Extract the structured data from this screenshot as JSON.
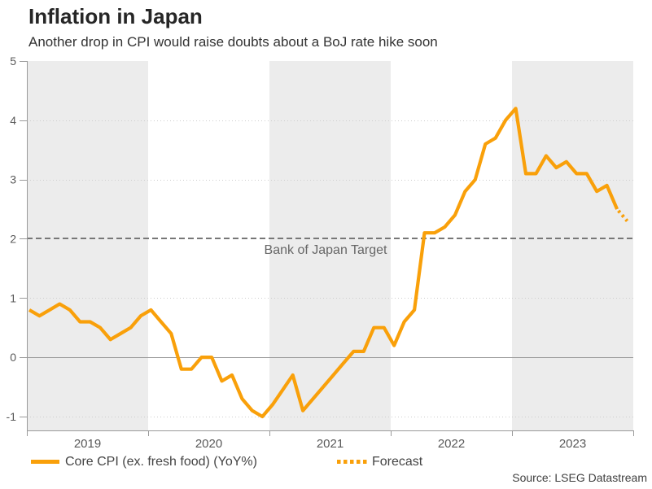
{
  "header": {
    "title": "Inflation in Japan",
    "subtitle": "Another drop in CPI would raise doubts about a BoJ rate hike soon"
  },
  "annotation": {
    "label": "Bank of Japan Target",
    "value": 2
  },
  "legend": {
    "series_label": "Core CPI (ex. fresh food) (YoY%)",
    "forecast_label": "Forecast"
  },
  "source": "Source: LSEG Datastream",
  "colors": {
    "line": "#F9A00A",
    "band": "#ECECEC",
    "grid": "#CDCDCD",
    "axis": "#9A9A9A",
    "target": "#777777",
    "tick_text": "#595959"
  },
  "chart_data": {
    "type": "line",
    "title": "Inflation in Japan",
    "subtitle": "Another drop in CPI would raise doubts about a BoJ rate hike soon",
    "frequency": "monthly",
    "x_range": [
      "2019-01",
      "2023-12"
    ],
    "year_labels": [
      "2019",
      "2020",
      "2021",
      "2022",
      "2023"
    ],
    "y_ticks": [
      5,
      4,
      3,
      2,
      1,
      0,
      -1
    ],
    "ylim": [
      -1.23,
      5
    ],
    "grid": "dotted-horizontal",
    "legend_position": "bottom-left",
    "target_line": {
      "label": "Bank of Japan Target",
      "value": 2,
      "style": "dashed"
    },
    "series": [
      {
        "name": "Core CPI (ex. fresh food) (YoY%)",
        "style": "solid",
        "values": [
          0.8,
          0.7,
          0.8,
          0.9,
          0.8,
          0.6,
          0.6,
          0.5,
          0.3,
          0.4,
          0.5,
          0.7,
          0.8,
          0.6,
          0.4,
          -0.2,
          -0.2,
          0.0,
          0.0,
          -0.4,
          -0.3,
          -0.7,
          -0.9,
          -1.0,
          -0.8,
          -0.55,
          -0.3,
          -0.9,
          -0.7,
          -0.5,
          -0.3,
          -0.1,
          0.1,
          0.1,
          0.5,
          0.5,
          0.2,
          0.6,
          0.8,
          2.1,
          2.1,
          2.2,
          2.4,
          2.8,
          3.0,
          3.6,
          3.7,
          4.0,
          4.2,
          3.1,
          3.1,
          3.4,
          3.2,
          3.3,
          3.1,
          3.1,
          2.8,
          2.9,
          2.5
        ]
      },
      {
        "name": "Forecast",
        "style": "dotted",
        "values": [
          2.5,
          2.3
        ]
      }
    ]
  }
}
